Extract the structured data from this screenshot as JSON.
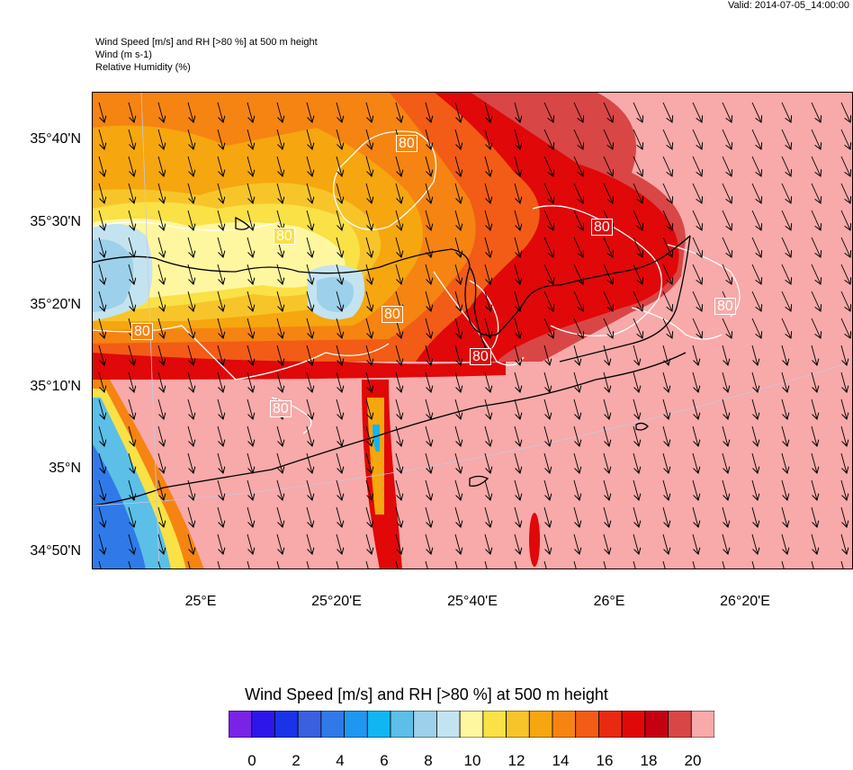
{
  "valid_time": "Valid: 2014-07-05_14:00:00",
  "titles": {
    "line1": "Wind Speed [m/s] and RH [>80 %] at 500 m height",
    "line2": "Wind   (m s-1)",
    "line3": "Relative Humidity   (%)"
  },
  "lat_labels": [
    "35°40'N",
    "35°30'N",
    "35°20'N",
    "35°10'N",
    "35°N",
    "34°50'N"
  ],
  "lon_labels": [
    "25°E",
    "25°20'E",
    "25°40'E",
    "26°E",
    "26°20'E"
  ],
  "contour_labels": [
    "80",
    "80",
    "80",
    "80",
    "80",
    "80",
    "80",
    "80"
  ],
  "colorbar": {
    "title": "Wind Speed [m/s] and RH [>80 %] at 500 m height",
    "labels": [
      "0",
      "2",
      "4",
      "6",
      "8",
      "10",
      "12",
      "14",
      "16",
      "18",
      "20"
    ],
    "colors": [
      "#7a22e6",
      "#2d16e9",
      "#1a33e8",
      "#3a5fe0",
      "#2f7ae8",
      "#1e97f0",
      "#10b6f2",
      "#5bbfe8",
      "#9dd0ea",
      "#c4e3f0",
      "#fff7a0",
      "#f9e146",
      "#f7c52a",
      "#f6a60e",
      "#f58412",
      "#f25c16",
      "#e82a10",
      "#e00808",
      "#c40012",
      "#d94646",
      "#f8a9a9"
    ]
  },
  "map_colors": {
    "pink": "#f8a9a9",
    "dark_red": "#d94646",
    "red": "#e00808",
    "orange_red": "#f25c16",
    "orange": "#f58412",
    "light_orange": "#f6a60e",
    "gold": "#f7c52a",
    "yellow": "#f9e146",
    "pale_yellow": "#fff7a0",
    "light_blue": "#c4e3f0",
    "sky_blue": "#9dd0ea",
    "blue": "#5bbfe8",
    "mid_blue": "#2f7ae8",
    "deep_blue": "#1a33e8"
  }
}
